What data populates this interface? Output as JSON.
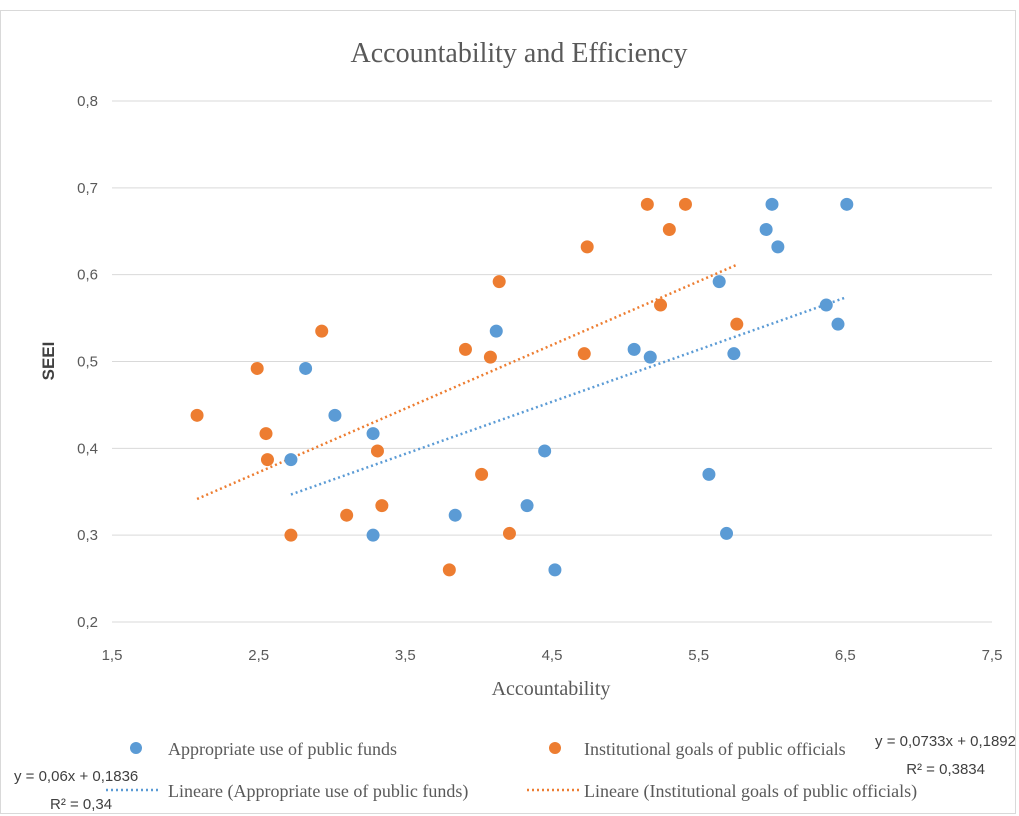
{
  "chart_data": {
    "type": "scatter",
    "title": "Accountability and Efficiency",
    "xlabel": "Accountability",
    "ylabel": "SEEI",
    "xlim": [
      1.5,
      7.5
    ],
    "ylim": [
      0.2,
      0.8
    ],
    "x_ticks": [
      1.5,
      2.5,
      3.5,
      4.5,
      5.5,
      6.5,
      7.5
    ],
    "x_tick_labels": [
      "1,5",
      "2,5",
      "3,5",
      "4,5",
      "5,5",
      "6,5",
      "7,5"
    ],
    "y_ticks": [
      0.2,
      0.3,
      0.4,
      0.5,
      0.6,
      0.7,
      0.8
    ],
    "y_tick_labels": [
      "0,2",
      "0,3",
      "0,4",
      "0,5",
      "0,6",
      "0,7",
      "0,8"
    ],
    "grid": "horizontal",
    "legend_position": "bottom",
    "series": [
      {
        "name": "Appropriate use of public funds",
        "color": "#5b9bd5",
        "points": [
          [
            2.72,
            0.387
          ],
          [
            2.82,
            0.492
          ],
          [
            3.02,
            0.438
          ],
          [
            3.28,
            0.417
          ],
          [
            3.28,
            0.3
          ],
          [
            3.84,
            0.323
          ],
          [
            4.12,
            0.535
          ],
          [
            4.33,
            0.334
          ],
          [
            4.45,
            0.397
          ],
          [
            4.52,
            0.26
          ],
          [
            5.06,
            0.514
          ],
          [
            5.17,
            0.505
          ],
          [
            5.57,
            0.37
          ],
          [
            5.64,
            0.592
          ],
          [
            5.69,
            0.302
          ],
          [
            5.74,
            0.509
          ],
          [
            5.96,
            0.652
          ],
          [
            6.0,
            0.681
          ],
          [
            6.04,
            0.632
          ],
          [
            6.37,
            0.565
          ],
          [
            6.45,
            0.543
          ],
          [
            6.51,
            0.681
          ]
        ]
      },
      {
        "name": "Institutional goals of public officials",
        "color": "#ed7d31",
        "points": [
          [
            2.08,
            0.438
          ],
          [
            2.49,
            0.492
          ],
          [
            2.55,
            0.417
          ],
          [
            2.56,
            0.387
          ],
          [
            2.72,
            0.3
          ],
          [
            2.93,
            0.535
          ],
          [
            3.1,
            0.323
          ],
          [
            3.31,
            0.397
          ],
          [
            3.34,
            0.334
          ],
          [
            3.8,
            0.26
          ],
          [
            3.91,
            0.514
          ],
          [
            4.02,
            0.37
          ],
          [
            4.08,
            0.505
          ],
          [
            4.14,
            0.592
          ],
          [
            4.21,
            0.302
          ],
          [
            4.72,
            0.509
          ],
          [
            4.74,
            0.632
          ],
          [
            5.15,
            0.681
          ],
          [
            5.24,
            0.565
          ],
          [
            5.3,
            0.652
          ],
          [
            5.41,
            0.681
          ],
          [
            5.76,
            0.543
          ]
        ]
      }
    ],
    "trendlines": [
      {
        "name": "Lineare (Appropriate use of public funds)",
        "color": "#5b9bd5",
        "x_range": [
          2.72,
          6.51
        ],
        "slope": 0.06,
        "intercept": 0.1836,
        "equation": "y = 0,06x + 0,1836",
        "r2": "R² = 0,34"
      },
      {
        "name": "Lineare (Institutional goals of public officials)",
        "color": "#ed7d31",
        "x_range": [
          2.08,
          5.76
        ],
        "slope": 0.0733,
        "intercept": 0.1892,
        "equation": "y = 0,0733x + 0,1892",
        "r2": "R² = 0,3834"
      }
    ]
  }
}
